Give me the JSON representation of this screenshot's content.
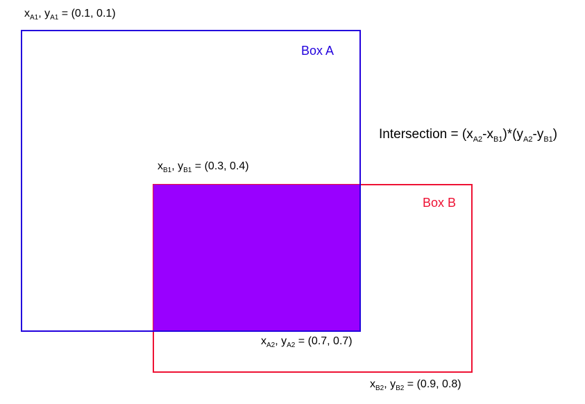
{
  "colors": {
    "box_a": "#2200dd",
    "box_b": "#ee1133",
    "intersection": "#9900ff"
  },
  "box_a": {
    "title": "Box A"
  },
  "box_b": {
    "title": "Box B"
  },
  "labels": {
    "a1": {
      "x_var": "x",
      "x_sub": "A1",
      "sep": ", ",
      "y_var": "y",
      "y_sub": "A1",
      "value": " = (0.1, 0.1)"
    },
    "b1": {
      "x_var": "x",
      "x_sub": "B1",
      "sep": ", ",
      "y_var": "y",
      "y_sub": "B1",
      "value": " = (0.3, 0.4)"
    },
    "a2": {
      "x_var": "x",
      "x_sub": "A2",
      "sep": ", ",
      "y_var": "y",
      "y_sub": "A2",
      "value": " = (0.7, 0.7)"
    },
    "b2": {
      "x_var": "x",
      "x_sub": "B2",
      "sep": ", ",
      "y_var": "y",
      "y_sub": "B2",
      "value": " = (0.9, 0.8)"
    }
  },
  "formula": {
    "prefix": "Intersection = (",
    "t1_var": "x",
    "t1_sub": "A2",
    "op1": "-",
    "t2_var": "x",
    "t2_sub": "B1",
    "mid": ")*(",
    "t3_var": "y",
    "t3_sub": "A2",
    "op2": "-",
    "t4_var": "y",
    "t4_sub": "B1",
    "suffix": ")"
  }
}
